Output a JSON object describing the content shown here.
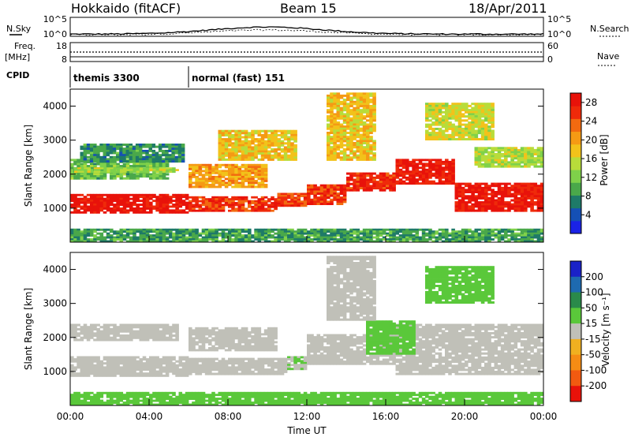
{
  "header": {
    "title": "Hokkaido (fitACF)",
    "beam": "Beam 15",
    "date": "18/Apr/2011"
  },
  "status_panels": {
    "nsky_label": "N.Sky",
    "nsearch_label": "N.Search",
    "freq_label_line1": "Freq.",
    "freq_label_line2": "[MHz]",
    "nave_label": "Nave",
    "cpid_label": "CPID",
    "noise_ticks": [
      "10^5",
      "10^0"
    ],
    "freq_ticks": [
      "18",
      "8"
    ],
    "nave_ticks": [
      "60",
      "0"
    ],
    "cpid_programs": [
      {
        "name": "themis 3300",
        "start_hour": 0,
        "end_hour": 6
      },
      {
        "name": "normal (fast) 151",
        "start_hour": 6,
        "end_hour": 24
      }
    ]
  },
  "chart_data": [
    {
      "type": "heatmap",
      "panel": "power",
      "xlabel": "Time UT",
      "ylabel": "Slant Range [km]",
      "xlim": [
        0,
        24
      ],
      "ylim": [
        0,
        4500
      ],
      "x_ticks": [
        "00:00",
        "04:00",
        "08:00",
        "12:00",
        "16:00",
        "20:00",
        "00:00"
      ],
      "y_ticks": [
        1000,
        2000,
        3000,
        4000
      ],
      "colorbar": {
        "label": "Power [dB]",
        "ticks": [
          "4",
          "8",
          "12",
          "16",
          "20",
          "24",
          "28"
        ],
        "range": [
          0,
          30
        ],
        "colors": [
          "#1a22e6",
          "#1550b5",
          "#1e7a68",
          "#4aa84a",
          "#7fd14a",
          "#b8dc3a",
          "#f2c21a",
          "#f59a14",
          "#f26a10",
          "#ef2a0a",
          "#e8120a"
        ]
      },
      "series": [
        {
          "segments": [
            {
              "t0": 0.0,
              "t1": 6.0,
              "r0": 850,
              "r1": 1420,
              "value": 29
            },
            {
              "t0": 6.0,
              "t1": 10.5,
              "r0": 900,
              "r1": 1350,
              "value": 26
            },
            {
              "t0": 10.5,
              "t1": 12.0,
              "r0": 1050,
              "r1": 1450,
              "value": 25
            },
            {
              "t0": 12.0,
              "t1": 14.0,
              "r0": 1100,
              "r1": 1700,
              "value": 26
            },
            {
              "t0": 14.0,
              "t1": 16.5,
              "r0": 1500,
              "r1": 2050,
              "value": 27
            },
            {
              "t0": 16.5,
              "t1": 19.5,
              "r0": 1700,
              "r1": 2450,
              "value": 28
            },
            {
              "t0": 19.5,
              "t1": 24.0,
              "r0": 900,
              "r1": 1750,
              "value": 28
            },
            {
              "t0": 0.0,
              "t1": 5.0,
              "r0": 1850,
              "r1": 2450,
              "value": 11
            },
            {
              "t0": 0.2,
              "t1": 5.5,
              "r0": 2050,
              "r1": 2200,
              "value": 14
            },
            {
              "t0": 0.5,
              "t1": 5.8,
              "r0": 2350,
              "r1": 2900,
              "value": 8
            },
            {
              "t0": 6.0,
              "t1": 10.0,
              "r0": 1600,
              "r1": 2300,
              "value": 20
            },
            {
              "t0": 7.5,
              "t1": 11.5,
              "r0": 2400,
              "r1": 3300,
              "value": 18
            },
            {
              "t0": 13.0,
              "t1": 15.5,
              "r0": 2400,
              "r1": 4400,
              "value": 18
            },
            {
              "t0": 18.0,
              "t1": 21.5,
              "r0": 3000,
              "r1": 4100,
              "value": 16
            },
            {
              "t0": 20.5,
              "t1": 24.0,
              "r0": 2200,
              "r1": 2800,
              "value": 14
            },
            {
              "t0": 0.0,
              "t1": 24.0,
              "r0": 0,
              "r1": 400,
              "value": 9
            }
          ]
        }
      ]
    },
    {
      "type": "heatmap",
      "panel": "velocity",
      "xlabel": "Time UT",
      "ylabel": "Slant Range [km]",
      "xlim": [
        0,
        24
      ],
      "ylim": [
        0,
        4500
      ],
      "x_ticks": [
        "00:00",
        "04:00",
        "08:00",
        "12:00",
        "16:00",
        "20:00",
        "00:00"
      ],
      "y_ticks": [
        1000,
        2000,
        3000,
        4000
      ],
      "colorbar": {
        "label": "Velocity [m s⁻¹]",
        "ticks": [
          "200",
          "100",
          "50",
          "15",
          "-15",
          "-50",
          "-100",
          "-200"
        ],
        "bands": [
          {
            "value": 250,
            "color": "#1a22c8"
          },
          {
            "value": 150,
            "color": "#1e6ab0"
          },
          {
            "value": 75,
            "color": "#2a8a4a"
          },
          {
            "value": 30,
            "color": "#5ac83a"
          },
          {
            "value": 0,
            "color": "#c0c0b8"
          },
          {
            "value": -30,
            "color": "#f0b020"
          },
          {
            "value": -75,
            "color": "#f58c14"
          },
          {
            "value": -150,
            "color": "#f25a10"
          },
          {
            "value": -250,
            "color": "#e8120a"
          }
        ]
      },
      "series": [
        {
          "segments": [
            {
              "t0": 0.0,
              "t1": 6.0,
              "r0": 850,
              "r1": 1450,
              "value": 0
            },
            {
              "t0": 6.0,
              "t1": 11.0,
              "r0": 900,
              "r1": 1400,
              "value": 0
            },
            {
              "t0": 11.0,
              "t1": 12.0,
              "r0": 1050,
              "r1": 1450,
              "value": 10
            },
            {
              "t0": 12.0,
              "t1": 16.5,
              "r0": 1200,
              "r1": 2100,
              "value": 0
            },
            {
              "t0": 16.5,
              "t1": 24.0,
              "r0": 900,
              "r1": 2400,
              "value": 0
            },
            {
              "t0": 0.0,
              "t1": 5.5,
              "r0": 1900,
              "r1": 2400,
              "value": 0
            },
            {
              "t0": 6.0,
              "t1": 10.5,
              "r0": 1600,
              "r1": 2300,
              "value": 0
            },
            {
              "t0": 15.0,
              "t1": 17.5,
              "r0": 1500,
              "r1": 2500,
              "value": 35
            },
            {
              "t0": 13.0,
              "t1": 15.5,
              "r0": 2500,
              "r1": 4400,
              "value": 0
            },
            {
              "t0": 18.0,
              "t1": 21.5,
              "r0": 3000,
              "r1": 4100,
              "value": 35
            },
            {
              "t0": 0.0,
              "t1": 24.0,
              "r0": 0,
              "r1": 400,
              "value": 30
            }
          ]
        }
      ]
    }
  ]
}
